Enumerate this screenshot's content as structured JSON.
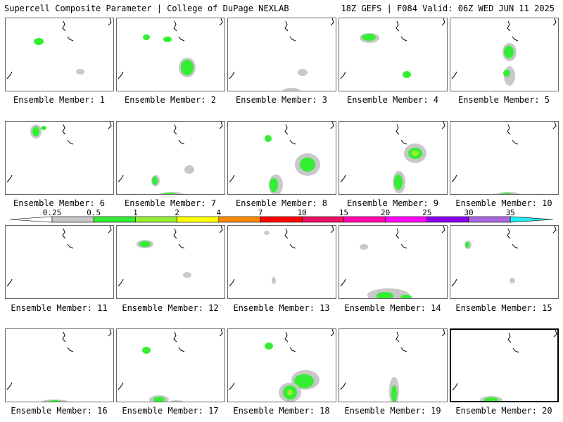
{
  "header": {
    "left": "Supercell Composite Parameter | College of DuPage NEXLAB",
    "right": "18Z GEFS | F084 Valid: 06Z WED JUN 11 2025"
  },
  "members": [
    {
      "label": "Ensemble Member: 1"
    },
    {
      "label": "Ensemble Member: 2"
    },
    {
      "label": "Ensemble Member: 3"
    },
    {
      "label": "Ensemble Member: 4"
    },
    {
      "label": "Ensemble Member: 5"
    },
    {
      "label": "Ensemble Member: 6"
    },
    {
      "label": "Ensemble Member: 7"
    },
    {
      "label": "Ensemble Member: 8"
    },
    {
      "label": "Ensemble Member: 9"
    },
    {
      "label": "Ensemble Member: 10"
    },
    {
      "label": "Ensemble Member: 11"
    },
    {
      "label": "Ensemble Member: 12"
    },
    {
      "label": "Ensemble Member: 13"
    },
    {
      "label": "Ensemble Member: 14"
    },
    {
      "label": "Ensemble Member: 15"
    },
    {
      "label": "Ensemble Member: 16"
    },
    {
      "label": "Ensemble Member: 17"
    },
    {
      "label": "Ensemble Member: 18"
    },
    {
      "label": "Ensemble Member: 19"
    },
    {
      "label": "Ensemble Member: 20",
      "selected": true
    }
  ],
  "colorbar": {
    "labels": [
      "0.25",
      "0.5",
      "1",
      "2",
      "4",
      "7",
      "10",
      "15",
      "20",
      "25",
      "30",
      "35"
    ],
    "colors": [
      "#c8c8c8",
      "#33ee33",
      "#99ee33",
      "#ffff00",
      "#ff8800",
      "#ff0000",
      "#ee1166",
      "#ff00aa",
      "#ff00ff",
      "#8800ee",
      "#aa66dd"
    ],
    "end_color": "#22eeee"
  },
  "colors": {
    "low": "#c8c8c8",
    "green": "#33ee33",
    "lime": "#99ee33",
    "yellow": "#ffff00"
  }
}
